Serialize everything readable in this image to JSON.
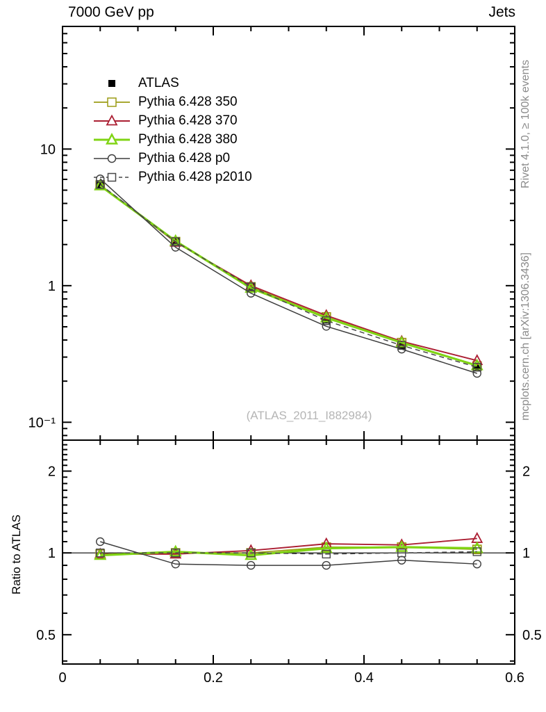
{
  "header": {
    "left_title": "7000 GeV pp",
    "right_title": "Jets"
  },
  "side_notes": {
    "top_rotated": "Rivet 4.1.0, ≥ 100k events",
    "bottom_rotated": "mcplots.cern.ch [arXiv:1306.3436]"
  },
  "watermark": "(ATLAS_2011_I882984)",
  "colors": {
    "frame": "#000000",
    "side_note": "#8a8a8a",
    "watermark": "#b5b5b5",
    "atlas": "#000000",
    "tune350": "#9b9b14",
    "tune370": "#ab1e32",
    "tune380": "#80d414",
    "tune_p0": "#3d3d3d",
    "tune_p2010": "#474747"
  },
  "chart_data": {
    "type": "line",
    "x": [
      0.05,
      0.15,
      0.25,
      0.35,
      0.45,
      0.55
    ],
    "xlim": [
      0,
      0.6
    ],
    "x_major_ticks": [
      0,
      0.2,
      0.4,
      0.6
    ],
    "x_major_labels": [
      "0",
      "0.2",
      "0.4",
      "0.6"
    ],
    "x_minor_step": 0.05,
    "grid": "off",
    "legend_position": "top-left",
    "main_panel": {
      "yscale": "log",
      "ylim": [
        0.074,
        79
      ],
      "y_major_ticks": [
        10,
        1,
        0.1
      ],
      "y_major_labels": [
        "10",
        "1",
        "10⁻¹"
      ]
    },
    "ratio_panel": {
      "ylabel": "Ratio to ATLAS",
      "yscale": "log",
      "ylim": [
        0.39,
        2.6
      ],
      "y_major_ticks": [
        2,
        1,
        0.5
      ],
      "y_major_labels": [
        "2",
        "1",
        "0.5"
      ],
      "reference_line": 1
    },
    "series": [
      {
        "name": "ATLAS",
        "color_key": "atlas",
        "marker": "square-filled",
        "line": "none",
        "width": 0,
        "values": [
          5.5,
          2.1,
          0.98,
          0.56,
          0.365,
          0.25
        ]
      },
      {
        "name": "Pythia 6.428 350",
        "color_key": "tune350",
        "marker": "square-open",
        "line": "solid",
        "width": 1.7,
        "values": [
          5.45,
          2.1,
          0.98,
          0.59,
          0.383,
          0.258
        ],
        "ratio": [
          0.99,
          1.0,
          1.0,
          1.05,
          1.05,
          1.03
        ]
      },
      {
        "name": "Pythia 6.428 370",
        "color_key": "tune370",
        "marker": "triangle-open",
        "line": "solid",
        "width": 1.9,
        "values": [
          5.45,
          2.08,
          1.0,
          0.605,
          0.391,
          0.283
        ],
        "ratio": [
          0.99,
          0.99,
          1.02,
          1.08,
          1.07,
          1.13
        ]
      },
      {
        "name": "Pythia 6.428 380",
        "color_key": "tune380",
        "marker": "triangle-open",
        "line": "solid",
        "width": 3.2,
        "values": [
          5.39,
          2.12,
          0.96,
          0.582,
          0.383,
          0.26
        ],
        "ratio": [
          0.98,
          1.01,
          0.98,
          1.04,
          1.05,
          1.04
        ]
      },
      {
        "name": "Pythia 6.428 p0",
        "color_key": "tune_p0",
        "marker": "circle-open",
        "line": "solid",
        "width": 1.5,
        "values": [
          6.05,
          1.91,
          0.88,
          0.504,
          0.343,
          0.228
        ],
        "ratio": [
          1.1,
          0.91,
          0.9,
          0.9,
          0.94,
          0.91
        ]
      },
      {
        "name": "Pythia 6.428 p2010",
        "color_key": "tune_p2010",
        "marker": "square-open-small",
        "line": "dashed",
        "width": 1.5,
        "values": [
          5.5,
          2.1,
          0.98,
          0.554,
          0.365,
          0.253
        ],
        "ratio": [
          1.0,
          1.0,
          1.0,
          0.99,
          1.0,
          1.01
        ]
      }
    ]
  }
}
